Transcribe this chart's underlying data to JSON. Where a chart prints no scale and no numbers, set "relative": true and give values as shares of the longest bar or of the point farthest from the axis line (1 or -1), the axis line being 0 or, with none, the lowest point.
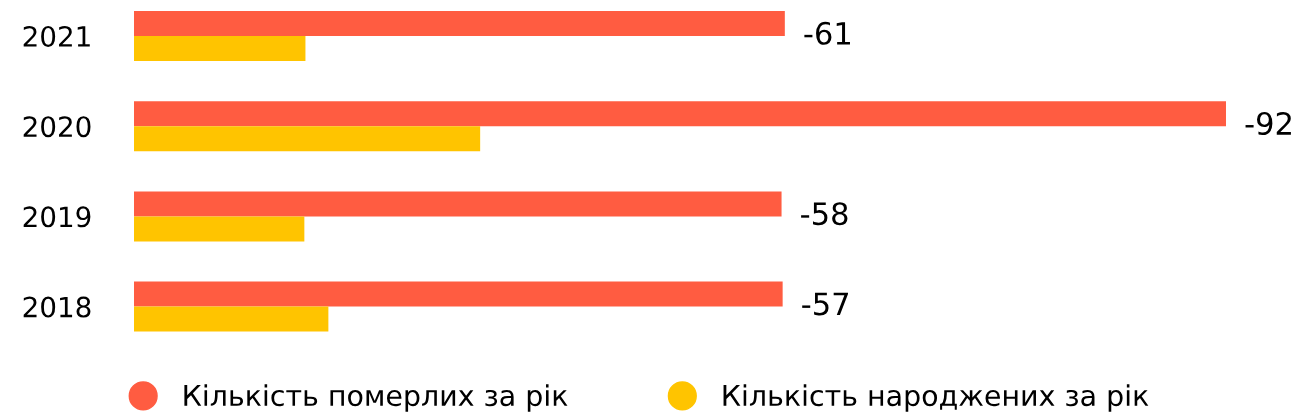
{
  "chart_data": {
    "type": "bar",
    "orientation": "horizontal",
    "relative": true,
    "categories": [
      "2021",
      "2020",
      "2019",
      "2018"
    ],
    "series": [
      {
        "name": "Кількість померлих за рік",
        "color": "#ff5c41",
        "values": [
          0.596,
          1,
          0.593,
          0.594
        ]
      },
      {
        "name": "Кількість народжених за рік",
        "color": "#ffc400",
        "values": [
          0.157,
          0.317,
          0.156,
          0.178
        ]
      }
    ],
    "annotations": [
      {
        "text": "-61",
        "x": 0.596,
        "y": "2021"
      },
      {
        "text": "-92",
        "x": 1,
        "y": "2020"
      },
      {
        "text": "-58",
        "x": 0.593,
        "y": "2019"
      },
      {
        "text": "-57",
        "x": 0.594,
        "y": "2018"
      }
    ],
    "legend": "bottom",
    "grid": false
  }
}
